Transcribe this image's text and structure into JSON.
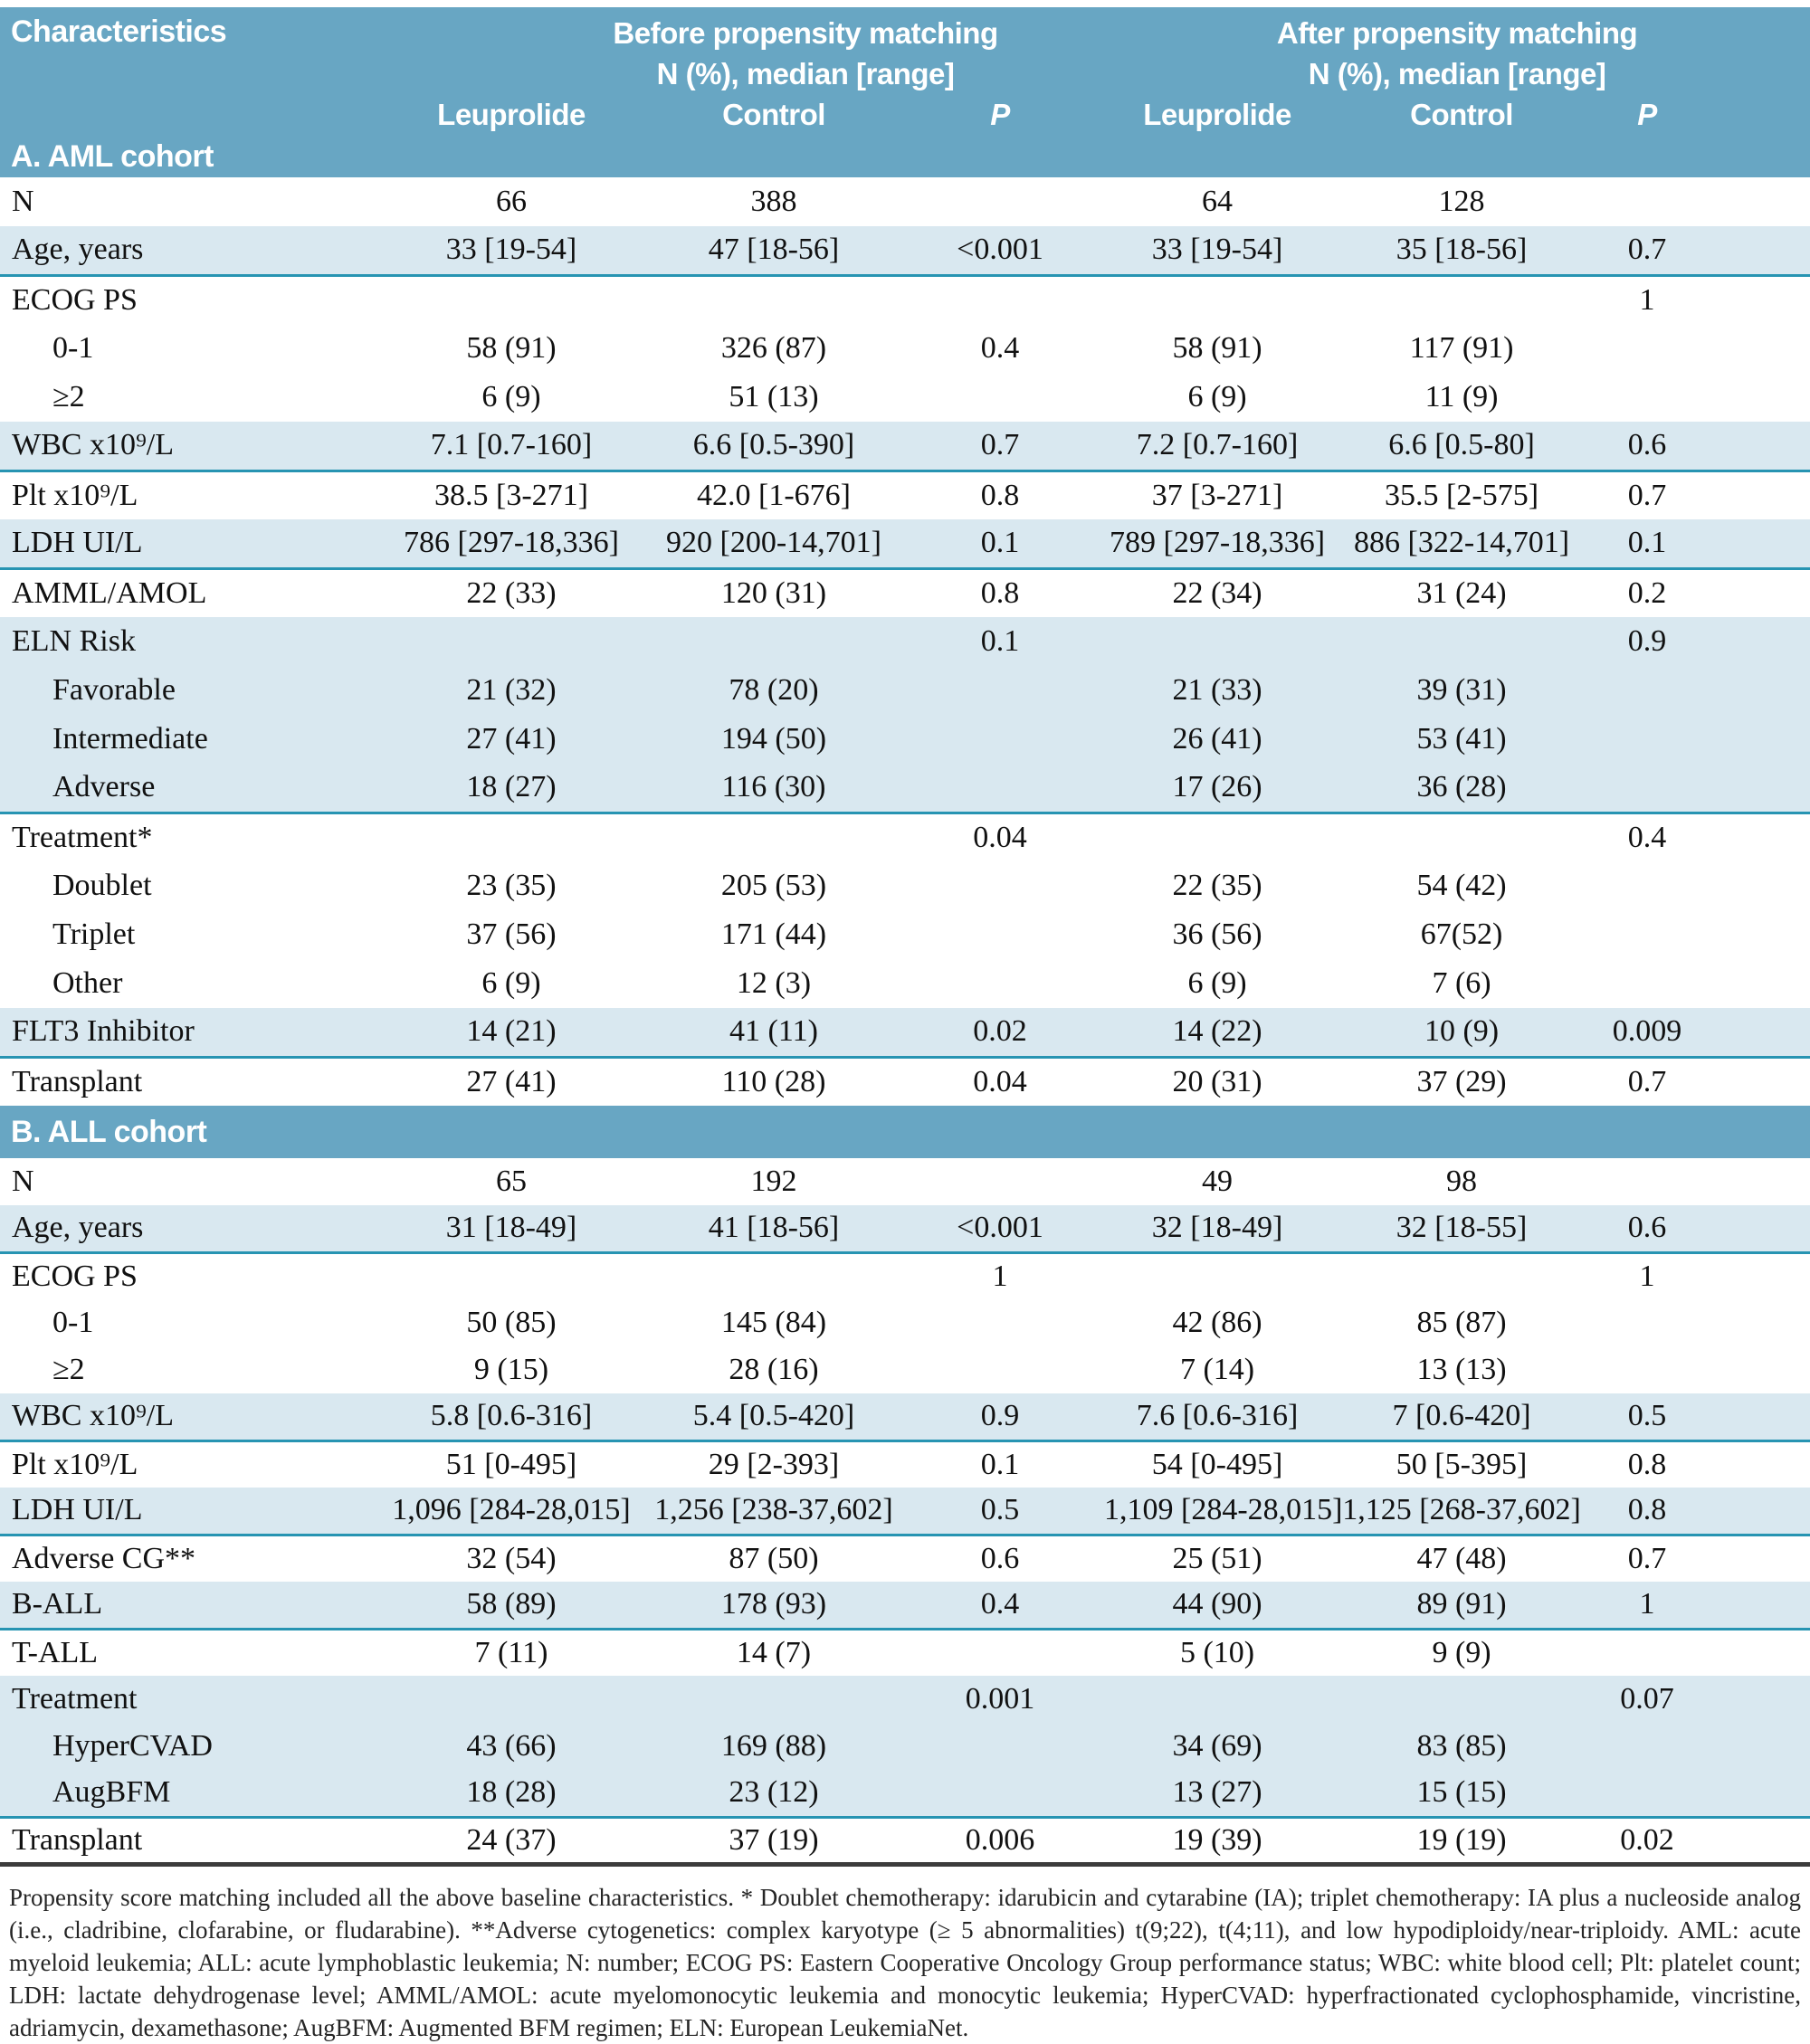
{
  "colors": {
    "header_band": "#68a6c3",
    "row_shade": "#d9e8f0",
    "divider_teal": "#2794b2",
    "bottom_rule": "#3c3c3c"
  },
  "table": {
    "header": {
      "characteristics": "Characteristics",
      "before_title": "Before propensity matching",
      "after_title": "After propensity matching",
      "subtitle": "N (%), median [range]",
      "col_leuprolide": "Leuprolide",
      "col_control": "Control",
      "col_p": "P"
    },
    "sections": [
      {
        "title": "A. AML cohort",
        "rows": [
          {
            "style": "",
            "indent": false,
            "cells": [
              "N",
              "66",
              "388",
              "",
              "64",
              "128",
              ""
            ]
          },
          {
            "style": "shaded teal",
            "indent": false,
            "cells": [
              "Age, years",
              "33 [19-54]",
              "47 [18-56]",
              "<0.001",
              "33 [19-54]",
              "35 [18-56]",
              "0.7"
            ]
          },
          {
            "style": "",
            "indent": false,
            "cells": [
              "ECOG PS",
              "",
              "",
              "",
              "",
              "",
              "1"
            ]
          },
          {
            "style": "",
            "indent": true,
            "cells": [
              "0-1",
              "58 (91)",
              "326 (87)",
              "0.4",
              "58 (91)",
              "117 (91)",
              ""
            ]
          },
          {
            "style": "",
            "indent": true,
            "cells": [
              "≥2",
              "6 (9)",
              "51 (13)",
              "",
              "6 (9)",
              "11 (9)",
              ""
            ]
          },
          {
            "style": "shaded teal",
            "indent": false,
            "cells": [
              "WBC x10⁹/L",
              "7.1 [0.7-160]",
              "6.6 [0.5-390]",
              "0.7",
              "7.2 [0.7-160]",
              "6.6 [0.5-80]",
              "0.6"
            ]
          },
          {
            "style": "",
            "indent": false,
            "cells": [
              "Plt x10⁹/L",
              "38.5 [3-271]",
              "42.0 [1-676]",
              "0.8",
              "37 [3-271]",
              "35.5 [2-575]",
              "0.7"
            ]
          },
          {
            "style": "shaded teal",
            "indent": false,
            "cells": [
              "LDH UI/L",
              "786 [297-18,336]",
              "920 [200-14,701]",
              "0.1",
              "789 [297-18,336]",
              "886 [322-14,701]",
              "0.1"
            ]
          },
          {
            "style": "",
            "indent": false,
            "cells": [
              "AMML/AMOL",
              "22 (33)",
              "120 (31)",
              "0.8",
              "22 (34)",
              "31 (24)",
              "0.2"
            ]
          },
          {
            "style": "shaded",
            "indent": false,
            "cells": [
              "ELN Risk",
              "",
              "",
              "0.1",
              "",
              "",
              "0.9"
            ]
          },
          {
            "style": "shaded",
            "indent": true,
            "cells": [
              "Favorable",
              "21 (32)",
              "78 (20)",
              "",
              "21 (33)",
              "39 (31)",
              ""
            ]
          },
          {
            "style": "shaded",
            "indent": true,
            "cells": [
              "Intermediate",
              "27 (41)",
              "194 (50)",
              "",
              "26 (41)",
              "53 (41)",
              ""
            ]
          },
          {
            "style": "shaded teal",
            "indent": true,
            "cells": [
              "Adverse",
              "18 (27)",
              "116 (30)",
              "",
              "17 (26)",
              "36 (28)",
              ""
            ]
          },
          {
            "style": "",
            "indent": false,
            "cells": [
              "Treatment*",
              "",
              "",
              "0.04",
              "",
              "",
              "0.4"
            ]
          },
          {
            "style": "",
            "indent": true,
            "cells": [
              "Doublet",
              "23 (35)",
              "205 (53)",
              "",
              "22 (35)",
              "54 (42)",
              ""
            ]
          },
          {
            "style": "",
            "indent": true,
            "cells": [
              "Triplet",
              "37 (56)",
              "171 (44)",
              "",
              "36 (56)",
              "67(52)",
              ""
            ]
          },
          {
            "style": "",
            "indent": true,
            "cells": [
              "Other",
              "6 (9)",
              "12 (3)",
              "",
              "6 (9)",
              "7 (6)",
              ""
            ]
          },
          {
            "style": "shaded teal",
            "indent": false,
            "cells": [
              "FLT3 Inhibitor",
              "14 (21)",
              "41 (11)",
              "0.02",
              "14 (22)",
              "10 (9)",
              "0.009"
            ]
          },
          {
            "style": "",
            "indent": false,
            "cells": [
              "Transplant",
              "27 (41)",
              "110 (28)",
              "0.04",
              "20 (31)",
              "37 (29)",
              "0.7"
            ]
          }
        ]
      },
      {
        "title": "B. ALL cohort",
        "rows": [
          {
            "style": "",
            "indent": false,
            "cells": [
              "N",
              "65",
              "192",
              "",
              "49",
              "98",
              ""
            ]
          },
          {
            "style": "shaded teal",
            "indent": false,
            "cells": [
              "Age, years",
              "31 [18-49]",
              "41 [18-56]",
              "<0.001",
              "32 [18-49]",
              "32 [18-55]",
              "0.6"
            ]
          },
          {
            "style": "",
            "indent": false,
            "cells": [
              "ECOG PS",
              "",
              "",
              "1",
              "",
              "",
              "1"
            ]
          },
          {
            "style": "",
            "indent": true,
            "cells": [
              "0-1",
              "50 (85)",
              "145 (84)",
              "",
              "42 (86)",
              "85 (87)",
              ""
            ]
          },
          {
            "style": "",
            "indent": true,
            "cells": [
              "≥2",
              "9 (15)",
              "28 (16)",
              "",
              "7 (14)",
              "13 (13)",
              ""
            ]
          },
          {
            "style": "shaded teal",
            "indent": false,
            "cells": [
              "WBC x10⁹/L",
              "5.8 [0.6-316]",
              "5.4 [0.5-420]",
              "0.9",
              "7.6 [0.6-316]",
              "7 [0.6-420]",
              "0.5"
            ]
          },
          {
            "style": "",
            "indent": false,
            "cells": [
              "Plt x10⁹/L",
              "51 [0-495]",
              "29 [2-393]",
              "0.1",
              "54 [0-495]",
              "50 [5-395]",
              "0.8"
            ]
          },
          {
            "style": "shaded teal",
            "indent": false,
            "cells": [
              "LDH UI/L",
              "1,096 [284-28,015]",
              "1,256 [238-37,602]",
              "0.5",
              "1,109 [284-28,015]",
              "1,125 [268-37,602]",
              "0.8"
            ]
          },
          {
            "style": "",
            "indent": false,
            "cells": [
              "Adverse CG**",
              "32 (54)",
              "87 (50)",
              "0.6",
              "25 (51)",
              "47 (48)",
              "0.7"
            ]
          },
          {
            "style": "shaded teal",
            "indent": false,
            "cells": [
              "B-ALL",
              "58 (89)",
              "178 (93)",
              "0.4",
              "44 (90)",
              "89 (91)",
              "1"
            ]
          },
          {
            "style": "",
            "indent": false,
            "cells": [
              "T-ALL",
              "7 (11)",
              "14 (7)",
              "",
              "5 (10)",
              "9 (9)",
              ""
            ]
          },
          {
            "style": "shaded",
            "indent": false,
            "cells": [
              "Treatment",
              "",
              "",
              "0.001",
              "",
              "",
              "0.07"
            ]
          },
          {
            "style": "shaded",
            "indent": true,
            "cells": [
              "HyperCVAD",
              "43 (66)",
              "169 (88)",
              "",
              "34 (69)",
              "83 (85)",
              ""
            ]
          },
          {
            "style": "shaded teal",
            "indent": true,
            "cells": [
              "AugBFM",
              "18 (28)",
              "23 (12)",
              "",
              "13 (27)",
              "15 (15)",
              ""
            ]
          },
          {
            "style": "last",
            "indent": false,
            "cells": [
              "Transplant",
              "24 (37)",
              "37 (19)",
              "0.006",
              "19 (39)",
              "19 (19)",
              "0.02"
            ]
          }
        ]
      }
    ],
    "footnote": "Propensity score matching included all the above baseline characteristics. * Doublet chemotherapy: idarubicin and cytarabine (IA); triplet chemotherapy: IA plus a nucleoside analog (i.e., cladribine, clofarabine, or fludarabine). **Adverse cytogenetics: complex karyotype (≥ 5 abnormalities) t(9;22), t(4;11), and low hypodiploidy/near-triploidy. AML: acute myeloid leukemia; ALL: acute lymphoblastic leukemia; N: number; ECOG PS: Eastern Cooperative Oncology Group performance status; WBC: white blood cell; Plt: platelet count; LDH: lactate dehydrogenase level; AMML/AMOL: acute myelomonocytic leukemia and monocytic leukemia; HyperCVAD: hyperfractionated cyclophosphamide, vincristine, adriamycin, dexamethasone; AugBFM: Augmented BFM regimen; ELN: European LeukemiaNet."
  }
}
